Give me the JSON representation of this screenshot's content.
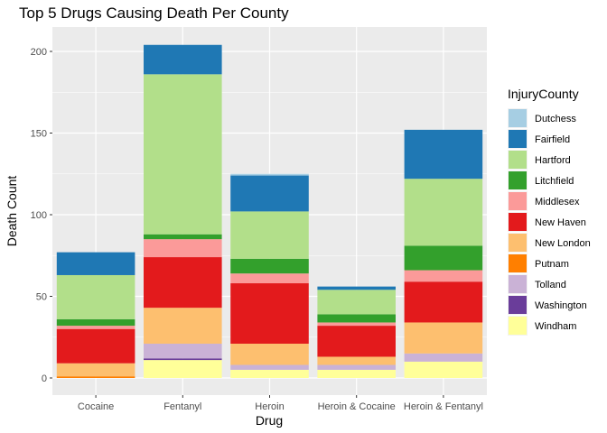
{
  "chart_data": {
    "type": "bar",
    "stacked": true,
    "title": "Top 5 Drugs Causing Death Per County",
    "xlabel": "Drug",
    "ylabel": "Death Count",
    "ylim": [
      0,
      215
    ],
    "yticks": [
      0,
      50,
      100,
      150,
      200
    ],
    "grid": true,
    "legend_position": "right",
    "legend_title": "InjuryCounty",
    "categories": [
      "Cocaine",
      "Fentanyl",
      "Heroin",
      "Heroin & Cocaine",
      "Heroin & Fentanyl"
    ],
    "series": [
      {
        "name": "Windham",
        "color": "#FFFF99",
        "values": [
          0,
          11,
          5,
          5,
          10
        ]
      },
      {
        "name": "Washington",
        "color": "#6A3D9A",
        "values": [
          0,
          1,
          0,
          0,
          0
        ]
      },
      {
        "name": "Tolland",
        "color": "#CAB2D6",
        "values": [
          0,
          9,
          3,
          3,
          5
        ]
      },
      {
        "name": "Putnam",
        "color": "#FF7F00",
        "values": [
          1,
          0,
          0,
          0,
          0
        ]
      },
      {
        "name": "New London",
        "color": "#FDBF6F",
        "values": [
          8,
          22,
          13,
          5,
          19
        ]
      },
      {
        "name": "New Haven",
        "color": "#E31A1C",
        "values": [
          21,
          31,
          37,
          19,
          25
        ]
      },
      {
        "name": "Middlesex",
        "color": "#FB9A99",
        "values": [
          2,
          11,
          6,
          2,
          7
        ]
      },
      {
        "name": "Litchfield",
        "color": "#33A02C",
        "values": [
          4,
          3,
          9,
          5,
          15
        ]
      },
      {
        "name": "Hartford",
        "color": "#B2DF8A",
        "values": [
          27,
          98,
          29,
          15,
          41
        ]
      },
      {
        "name": "Fairfield",
        "color": "#1F78B4",
        "values": [
          14,
          18,
          22,
          2,
          30
        ]
      },
      {
        "name": "Dutchess",
        "color": "#A6CEE3",
        "values": [
          0,
          0,
          1,
          0,
          0
        ]
      }
    ]
  }
}
